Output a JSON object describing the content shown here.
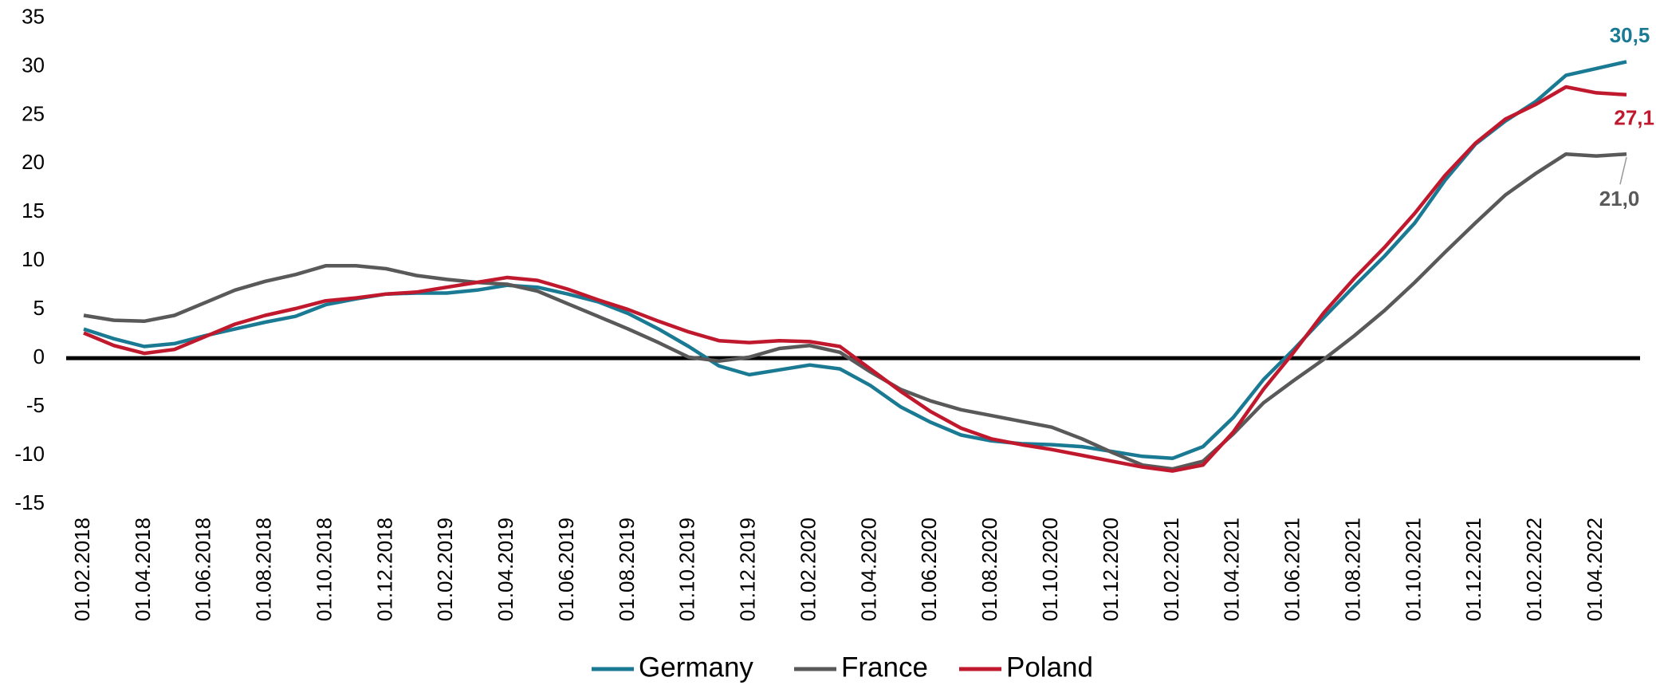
{
  "chart_data": {
    "type": "line",
    "categories": [
      "01.02.2018",
      null,
      "01.04.2018",
      null,
      "01.06.2018",
      null,
      "01.08.2018",
      null,
      "01.10.2018",
      null,
      "01.12.2018",
      null,
      "01.02.2019",
      null,
      "01.04.2019",
      null,
      "01.06.2019",
      null,
      "01.08.2019",
      null,
      "01.10.2019",
      null,
      "01.12.2019",
      null,
      "01.02.2020",
      null,
      "01.04.2020",
      null,
      "01.06.2020",
      null,
      "01.08.2020",
      null,
      "01.10.2020",
      null,
      "01.12.2020",
      null,
      "01.02.2021",
      null,
      "01.04.2021",
      null,
      "01.06.2021",
      null,
      "01.08.2021",
      null,
      "01.10.2021",
      null,
      "01.12.2021",
      null,
      "01.02.2022",
      null,
      "01.04.2022",
      null
    ],
    "series": [
      {
        "name": "Germany",
        "color": "#1a7a94",
        "values": [
          3.0,
          2.0,
          1.2,
          1.5,
          2.3,
          3.0,
          3.7,
          4.3,
          5.5,
          6.1,
          6.6,
          6.7,
          6.7,
          7.0,
          7.5,
          7.3,
          6.6,
          5.8,
          4.6,
          3.0,
          1.2,
          -0.8,
          -1.7,
          -1.2,
          -0.7,
          -1.1,
          -2.8,
          -5.0,
          -6.6,
          -7.9,
          -8.5,
          -8.8,
          -8.9,
          -9.1,
          -9.6,
          -10.1,
          -10.3,
          -9.1,
          -6.1,
          -2.2,
          0.9,
          4.2,
          7.4,
          10.5,
          13.9,
          18.3,
          22.0,
          24.4,
          26.4,
          29.1,
          29.8,
          30.5
        ],
        "value_labels": [
          null,
          null,
          null,
          null,
          null,
          null,
          null,
          null,
          null,
          null,
          null,
          null,
          null,
          null,
          null,
          null,
          null,
          null,
          null,
          null,
          null,
          null,
          null,
          null,
          null,
          null,
          null,
          null,
          null,
          null,
          null,
          null,
          null,
          null,
          null,
          null,
          null,
          null,
          null,
          null,
          null,
          null,
          null,
          null,
          null,
          null,
          null,
          null,
          null,
          null,
          null,
          "30,5"
        ]
      },
      {
        "name": "France",
        "color": "#595959",
        "values": [
          4.4,
          3.9,
          3.8,
          4.4,
          5.7,
          7.0,
          7.9,
          8.6,
          9.5,
          9.5,
          9.2,
          8.5,
          8.1,
          7.8,
          7.6,
          6.9,
          5.6,
          4.3,
          3.0,
          1.6,
          0.1,
          -0.3,
          0.1,
          1.0,
          1.3,
          0.6,
          -1.4,
          -3.2,
          -4.4,
          -5.3,
          -5.9,
          -6.5,
          -7.1,
          -8.3,
          -9.7,
          -11.0,
          -11.4,
          -10.6,
          -7.8,
          -4.6,
          -2.3,
          -0.1,
          2.3,
          4.9,
          7.8,
          10.9,
          13.9,
          16.8,
          19.0,
          21.0,
          20.8,
          21.0
        ],
        "value_labels": [
          null,
          null,
          null,
          null,
          null,
          null,
          null,
          null,
          null,
          null,
          null,
          null,
          null,
          null,
          null,
          null,
          null,
          null,
          null,
          null,
          null,
          null,
          null,
          null,
          null,
          null,
          null,
          null,
          null,
          null,
          null,
          null,
          null,
          null,
          null,
          null,
          null,
          null,
          null,
          null,
          null,
          null,
          null,
          null,
          null,
          null,
          null,
          null,
          null,
          null,
          null,
          "21,0"
        ]
      },
      {
        "name": "Poland",
        "color": "#c0182d",
        "values": [
          2.6,
          1.3,
          0.5,
          0.9,
          2.2,
          3.5,
          4.4,
          5.1,
          5.9,
          6.2,
          6.6,
          6.8,
          7.3,
          7.8,
          8.3,
          8.0,
          7.1,
          6.0,
          5.0,
          3.8,
          2.7,
          1.8,
          1.6,
          1.8,
          1.7,
          1.2,
          -1.1,
          -3.4,
          -5.5,
          -7.2,
          -8.3,
          -8.9,
          -9.4,
          -10.0,
          -10.6,
          -11.2,
          -11.6,
          -11.0,
          -7.6,
          -3.2,
          0.6,
          4.7,
          8.2,
          11.4,
          14.9,
          18.8,
          22.1,
          24.6,
          26.1,
          27.9,
          27.3,
          27.1
        ],
        "value_labels": [
          null,
          null,
          null,
          null,
          null,
          null,
          null,
          null,
          null,
          null,
          null,
          null,
          null,
          null,
          null,
          null,
          null,
          null,
          null,
          null,
          null,
          null,
          null,
          null,
          null,
          null,
          null,
          null,
          null,
          null,
          null,
          null,
          null,
          null,
          null,
          null,
          null,
          null,
          null,
          null,
          null,
          null,
          null,
          null,
          null,
          null,
          null,
          null,
          null,
          null,
          null,
          "27,1"
        ]
      }
    ],
    "ylim": [
      -15,
      35
    ],
    "yticks": [
      -15,
      -10,
      -5,
      0,
      5,
      10,
      15,
      20,
      25,
      30,
      35
    ],
    "grid": false,
    "legend": "bottom"
  }
}
